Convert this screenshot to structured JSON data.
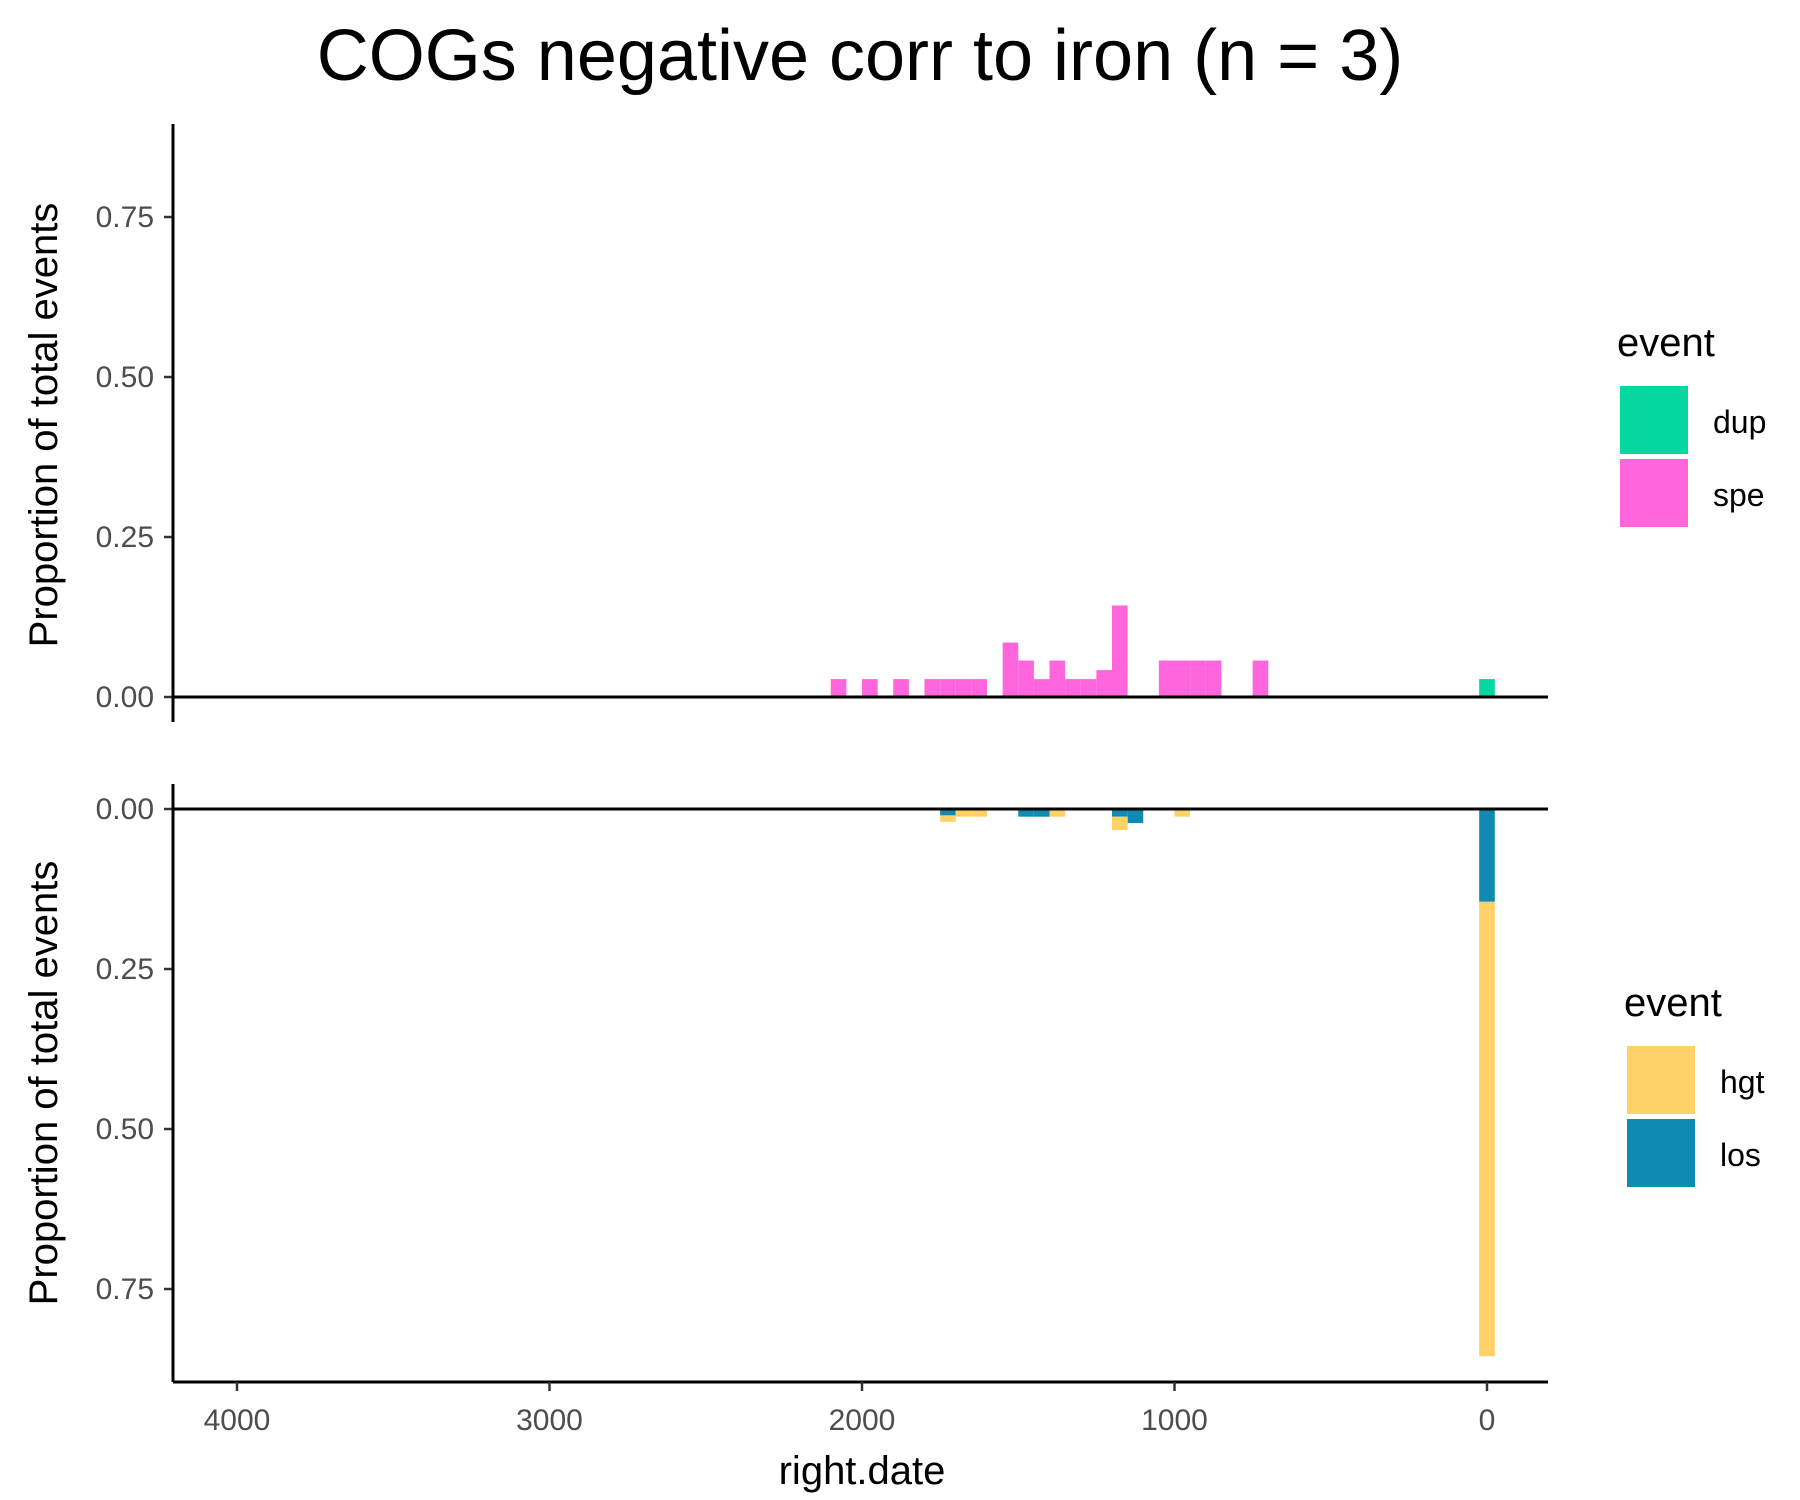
{
  "chart_data": {
    "type": "bar",
    "title": "COGs negative corr to iron (n = 3)",
    "xlabel": "right.date",
    "x_ticks": [
      4000,
      3000,
      2000,
      1000,
      0
    ],
    "xlim": [
      4200,
      -200
    ],
    "x_reversed": true,
    "bin_width": 50,
    "panels": [
      {
        "ylabel": "Proportion of total events",
        "direction": "up",
        "ylim": [
          0,
          0.9
        ],
        "y_ticks": [
          "0.00",
          "0.25",
          "0.50",
          "0.75"
        ],
        "legend": {
          "title": "event",
          "items": [
            {
              "name": "dup",
              "color": "#06D6A0"
            },
            {
              "name": "spe",
              "color": "#FF66DD"
            }
          ]
        },
        "series": [
          {
            "name": "dup",
            "color": "#06D6A0",
            "points": [
              [
                0,
                0.028
              ]
            ]
          },
          {
            "name": "spe",
            "color": "#FF66DD",
            "points": [
              [
                2075,
                0.028
              ],
              [
                1975,
                0.028
              ],
              [
                1875,
                0.028
              ],
              [
                1775,
                0.028
              ],
              [
                1725,
                0.028
              ],
              [
                1675,
                0.028
              ],
              [
                1625,
                0.028
              ],
              [
                1525,
                0.085
              ],
              [
                1475,
                0.057
              ],
              [
                1425,
                0.028
              ],
              [
                1375,
                0.057
              ],
              [
                1325,
                0.028
              ],
              [
                1275,
                0.028
              ],
              [
                1225,
                0.042
              ],
              [
                1175,
                0.143
              ],
              [
                1025,
                0.057
              ],
              [
                975,
                0.057
              ],
              [
                925,
                0.057
              ],
              [
                875,
                0.057
              ],
              [
                725,
                0.057
              ]
            ]
          }
        ]
      },
      {
        "ylabel": "Proportion of total events",
        "direction": "down",
        "ylim": [
          0,
          0.9
        ],
        "y_ticks": [
          "0.00",
          "0.25",
          "0.50",
          "0.75"
        ],
        "legend": {
          "title": "event",
          "items": [
            {
              "name": "hgt",
              "color": "#FFD166"
            },
            {
              "name": "los",
              "color": "#118AB2"
            }
          ]
        },
        "stacked": [
          "los",
          "hgt"
        ],
        "series": [
          {
            "name": "los",
            "color": "#118AB2",
            "points": [
              [
                1725,
                0.01
              ],
              [
                1475,
                0.012
              ],
              [
                1425,
                0.012
              ],
              [
                1175,
                0.012
              ],
              [
                1125,
                0.022
              ],
              [
                0,
                0.145
              ]
            ]
          },
          {
            "name": "hgt",
            "color": "#FFD166",
            "points": [
              [
                1725,
                0.01
              ],
              [
                1675,
                0.012
              ],
              [
                1625,
                0.012
              ],
              [
                1375,
                0.012
              ],
              [
                1175,
                0.021
              ],
              [
                975,
                0.012
              ],
              [
                0,
                0.71
              ]
            ]
          }
        ]
      }
    ]
  }
}
